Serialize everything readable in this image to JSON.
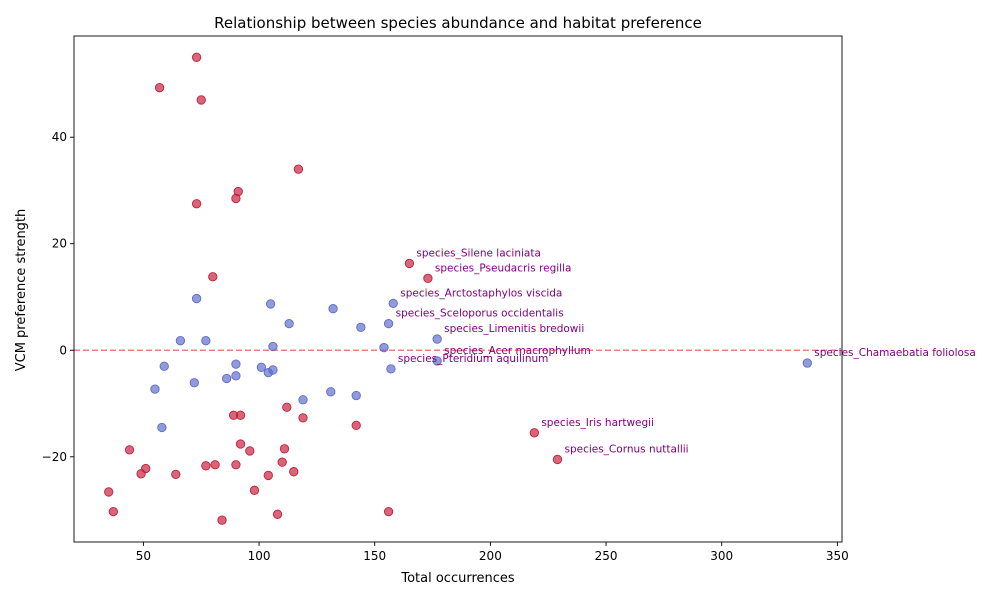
{
  "chart_data": {
    "type": "scatter",
    "title": "Relationship between species abundance and habitat preference",
    "xlabel": "Total occurrences",
    "ylabel": "VCM preference strength",
    "xlim": [
      20,
      352
    ],
    "ylim": [
      -36,
      59
    ],
    "xticks": [
      50,
      100,
      150,
      200,
      250,
      300,
      350
    ],
    "yticks": [
      -20,
      0,
      20,
      40
    ],
    "grid": false,
    "legend": "none",
    "reference_line": {
      "y": 0,
      "style": "dashed",
      "color": "#f08080"
    },
    "colors": {
      "positive": "#c41e3a",
      "negative": "#5e6bc9"
    },
    "series": [
      {
        "group": "positive",
        "points": [
          [
            73,
            55
          ],
          [
            57,
            49.3
          ],
          [
            75,
            47
          ],
          [
            117,
            34
          ],
          [
            91,
            29.8
          ],
          [
            90,
            28.5
          ],
          [
            73,
            27.5
          ],
          [
            165,
            16.3
          ],
          [
            173,
            13.5
          ],
          [
            80,
            13.8
          ]
        ]
      },
      {
        "group": "negative",
        "points": [
          [
            73,
            9.7
          ],
          [
            105,
            8.7
          ],
          [
            132,
            7.8
          ],
          [
            158,
            8.8
          ],
          [
            113,
            5
          ],
          [
            156,
            5
          ],
          [
            144,
            4.3
          ],
          [
            66,
            1.8
          ],
          [
            77,
            1.8
          ],
          [
            177,
            2.1
          ],
          [
            106,
            0.7
          ],
          [
            154,
            0.5
          ],
          [
            337,
            -2.4
          ],
          [
            177,
            -2
          ],
          [
            90,
            -2.6
          ],
          [
            59,
            -3
          ],
          [
            101,
            -3.2
          ],
          [
            157,
            -3.5
          ],
          [
            106,
            -3.7
          ],
          [
            104,
            -4.2
          ],
          [
            90,
            -4.8
          ],
          [
            86,
            -5.3
          ],
          [
            72,
            -6.1
          ],
          [
            55,
            -7.3
          ],
          [
            131,
            -7.8
          ],
          [
            142,
            -8.5
          ],
          [
            119,
            -9.3
          ],
          [
            58,
            -14.5
          ]
        ]
      },
      {
        "group": "positive",
        "points": [
          [
            112,
            -10.7
          ],
          [
            89,
            -12.2
          ],
          [
            92,
            -12.2
          ],
          [
            119,
            -12.7
          ],
          [
            142,
            -14.1
          ],
          [
            219,
            -15.5
          ],
          [
            92,
            -17.6
          ],
          [
            44,
            -18.7
          ],
          [
            111,
            -18.5
          ],
          [
            96,
            -18.9
          ],
          [
            229,
            -20.5
          ],
          [
            110,
            -21
          ],
          [
            90,
            -21.5
          ],
          [
            77,
            -21.7
          ],
          [
            81,
            -21.5
          ],
          [
            51,
            -22.2
          ],
          [
            115,
            -22.8
          ],
          [
            49,
            -23.2
          ],
          [
            64,
            -23.3
          ],
          [
            104,
            -23.5
          ],
          [
            98,
            -26.3
          ],
          [
            35,
            -26.6
          ],
          [
            156,
            -30.3
          ],
          [
            37,
            -30.3
          ],
          [
            108,
            -30.8
          ],
          [
            84,
            -31.9
          ]
        ]
      }
    ],
    "annotations": [
      {
        "text": "species_Silene laciniata",
        "x": 165,
        "y": 16.3
      },
      {
        "text": "species_Pseudacris regilla",
        "x": 173,
        "y": 13.5
      },
      {
        "text": "species_Arctostaphylos viscida",
        "x": 158,
        "y": 8.8
      },
      {
        "text": "species_Sceloporus occidentalis",
        "x": 156,
        "y": 5
      },
      {
        "text": "species_Limenitis bredowii",
        "x": 177,
        "y": 2.1
      },
      {
        "text": "species_Acer macrophyllum",
        "x": 177,
        "y": -2
      },
      {
        "text": "species_Pteridium aquilinum",
        "x": 157,
        "y": -3.5
      },
      {
        "text": "species_Chamaebatia foliolosa",
        "x": 337,
        "y": -2.4
      },
      {
        "text": "species_Iris hartwegii",
        "x": 219,
        "y": -15.5
      },
      {
        "text": "species_Cornus nuttallii",
        "x": 229,
        "y": -20.5
      }
    ]
  }
}
